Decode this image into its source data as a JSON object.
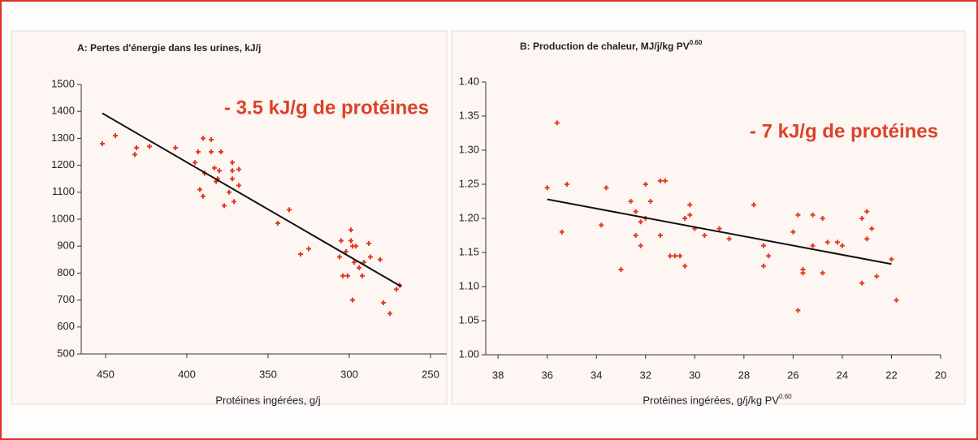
{
  "chart_data": [
    {
      "type": "scatter",
      "title": "A: Pertes d'énergie dans les urines, kJ/j",
      "annotation": "- 3.5 kJ/g de protéines",
      "x_label": "Protéines ingérées, g/j",
      "color": "#e23a24",
      "fit_color": "#111111",
      "xlim": [
        465,
        240
      ],
      "ylim": [
        500,
        1500
      ],
      "xticks": [
        450,
        400,
        350,
        300,
        250
      ],
      "yticks": [
        500,
        600,
        700,
        800,
        900,
        1000,
        1100,
        1200,
        1300,
        1400,
        1500
      ],
      "points": {
        "x": [
          452,
          444,
          432,
          431,
          423,
          407,
          395,
          393,
          392,
          390,
          390,
          389,
          385,
          385,
          383,
          382,
          381,
          380,
          379,
          377,
          374,
          372,
          372,
          372,
          371,
          368,
          368,
          344,
          337,
          330,
          325,
          306,
          305,
          304,
          302,
          301,
          299,
          299,
          298,
          298,
          297,
          296,
          294,
          292,
          291,
          288,
          287,
          281,
          279,
          275,
          271,
          269
        ],
        "y": [
          1280,
          1310,
          1240,
          1265,
          1270,
          1265,
          1210,
          1250,
          1110,
          1085,
          1300,
          1170,
          1250,
          1295,
          1190,
          1140,
          1150,
          1180,
          1250,
          1050,
          1100,
          1210,
          1180,
          1150,
          1065,
          1125,
          1185,
          985,
          1035,
          870,
          890,
          860,
          920,
          790,
          880,
          790,
          960,
          920,
          700,
          900,
          840,
          900,
          820,
          790,
          840,
          910,
          860,
          850,
          690,
          650,
          740,
          755
        ]
      },
      "fit": {
        "x": [
          452,
          268
        ],
        "y": [
          1393,
          750
        ]
      }
    },
    {
      "type": "scatter",
      "title": "B: Production de chaleur, MJ/j/kg PV",
      "title_sup": "0.60",
      "annotation": "- 7 kJ/g de protéines",
      "x_label": "Protéines ingérées, g/j/kg PV",
      "x_label_sup": "0.60",
      "color": "#e23a24",
      "fit_color": "#111111",
      "xlim": [
        38.5,
        20
      ],
      "ylim": [
        1,
        1.4
      ],
      "xticks": [
        38,
        36,
        34,
        32,
        30,
        28,
        26,
        24,
        22,
        20
      ],
      "yticks": [
        {
          "value": 1,
          "label": "1.00"
        },
        1.05,
        {
          "value": 1.1,
          "label": "1.10"
        },
        1.15,
        {
          "value": 1.2,
          "label": "1.20"
        },
        1.25,
        {
          "value": 1.3,
          "label": "1.30"
        },
        1.35,
        {
          "value": 1.4,
          "label": "1.40"
        }
      ],
      "points": {
        "x": [
          36,
          35.6,
          35.2,
          35.4,
          33.8,
          33.6,
          33,
          32.6,
          32.4,
          32.4,
          32.2,
          32.2,
          32,
          32,
          31.8,
          31.4,
          31.4,
          31.2,
          31,
          30.8,
          30.6,
          30.4,
          30.4,
          30.2,
          30.2,
          30,
          29.6,
          29,
          28.6,
          27.6,
          27.2,
          27.2,
          27,
          26,
          25.8,
          25.8,
          25.6,
          25.6,
          25.2,
          25.2,
          24.8,
          24.8,
          24.6,
          24.2,
          24,
          23.2,
          23.2,
          23,
          23,
          22.8,
          22.6,
          22,
          21.8
        ],
        "y": [
          1.245,
          1.34,
          1.25,
          1.18,
          1.19,
          1.245,
          1.125,
          1.225,
          1.21,
          1.175,
          1.16,
          1.195,
          1.2,
          1.25,
          1.225,
          1.255,
          1.175,
          1.255,
          1.145,
          1.145,
          1.145,
          1.13,
          1.2,
          1.205,
          1.22,
          1.185,
          1.175,
          1.185,
          1.17,
          1.22,
          1.16,
          1.13,
          1.145,
          1.18,
          1.065,
          1.205,
          1.125,
          1.12,
          1.16,
          1.205,
          1.2,
          1.12,
          1.165,
          1.165,
          1.16,
          1.2,
          1.105,
          1.21,
          1.17,
          1.185,
          1.115,
          1.14,
          1.08
        ]
      },
      "fit": {
        "x": [
          36,
          22
        ],
        "y": [
          1.228,
          1.133
        ]
      }
    }
  ]
}
